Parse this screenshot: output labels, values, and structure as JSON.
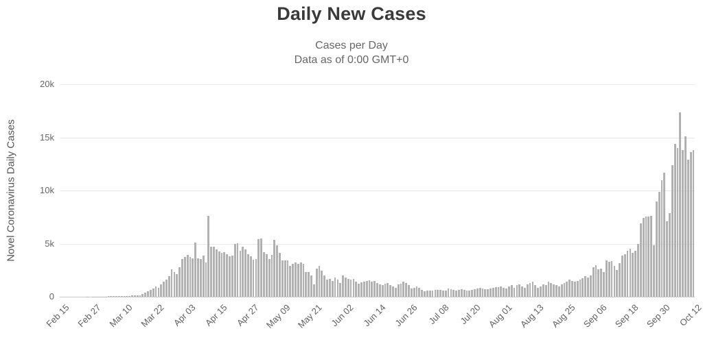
{
  "header": {
    "title": "Daily New Cases",
    "subtitle_line1": "Cases per Day",
    "subtitle_line2": "Data as of 0:00 GMT+0"
  },
  "chart_data": {
    "type": "bar",
    "title": "Daily New Cases",
    "subtitle": [
      "Cases per Day",
      "Data as of 0:00 GMT+0"
    ],
    "xlabel": "",
    "ylabel": "Novel Coronavirus Daily Cases",
    "ylim": [
      0,
      20000
    ],
    "ytick_values": [
      0,
      5000,
      10000,
      15000,
      20000
    ],
    "ytick_labels": [
      "0",
      "5k",
      "10k",
      "15k",
      "20k"
    ],
    "grid": true,
    "legend": false,
    "x_start_label": "Feb 15",
    "x_end_label": "Oct 12",
    "xtick_interval_days": 12,
    "xtick_labels": [
      "Feb 15",
      "Feb 27",
      "Mar 10",
      "Mar 22",
      "Apr 03",
      "Apr 15",
      "Apr 27",
      "May 09",
      "May 21",
      "Jun 02",
      "Jun 14",
      "Jun 26",
      "Jul 08",
      "Jul 20",
      "Aug 01",
      "Aug 13",
      "Aug 25",
      "Sep 06",
      "Sep 18",
      "Sep 30",
      "Oct 12"
    ],
    "series": [
      {
        "name": "Daily Cases",
        "values": [
          0,
          0,
          0,
          1,
          2,
          0,
          1,
          0,
          2,
          4,
          5,
          3,
          6,
          9,
          13,
          20,
          25,
          30,
          35,
          42,
          48,
          45,
          52,
          55,
          60,
          70,
          80,
          100,
          130,
          160,
          150,
          260,
          380,
          530,
          640,
          750,
          960,
          850,
          1170,
          1390,
          1600,
          1920,
          2560,
          2350,
          2140,
          2770,
          3520,
          3740,
          3950,
          3740,
          3630,
          5120,
          3630,
          3520,
          3840,
          3250,
          7600,
          4680,
          4740,
          4420,
          4250,
          4100,
          4210,
          3990,
          3780,
          3890,
          4950,
          5060,
          4310,
          4740,
          4420,
          3990,
          3780,
          3460,
          3570,
          5420,
          5500,
          4210,
          3990,
          3530,
          3950,
          5340,
          4810,
          4100,
          3420,
          3420,
          3420,
          2880,
          3100,
          3210,
          3100,
          3210,
          3100,
          2350,
          2350,
          2030,
          1180,
          2670,
          2880,
          2460,
          2030,
          1600,
          1710,
          1500,
          1820,
          1600,
          1280,
          2030,
          1820,
          1710,
          1600,
          1650,
          1390,
          1220,
          1350,
          1450,
          1500,
          1560,
          1440,
          1510,
          1280,
          1160,
          1110,
          1240,
          1280,
          1110,
          960,
          850,
          1180,
          1220,
          1390,
          1280,
          1070,
          750,
          850,
          960,
          850,
          640,
          530,
          600,
          580,
          550,
          620,
          630,
          640,
          580,
          550,
          750,
          680,
          650,
          600,
          640,
          690,
          660,
          580,
          570,
          640,
          700,
          770,
          820,
          790,
          690,
          720,
          780,
          830,
          880,
          910,
          960,
          850,
          750,
          960,
          1070,
          850,
          1070,
          1180,
          960,
          850,
          1180,
          1280,
          1390,
          1070,
          850,
          960,
          1180,
          1070,
          1390,
          1280,
          1180,
          1070,
          960,
          1180,
          1280,
          1390,
          1600,
          1500,
          1390,
          1500,
          1600,
          1750,
          1920,
          1820,
          2030,
          2780,
          2990,
          2560,
          2670,
          2350,
          3420,
          3310,
          3350,
          2930,
          2500,
          3140,
          3890,
          3990,
          4310,
          4530,
          4100,
          4310,
          4960,
          6880,
          7410,
          7520,
          7520,
          7600,
          4850,
          9000,
          9900,
          11000,
          11700,
          7100,
          7840,
          12400,
          14400,
          14000,
          17350,
          13800,
          15100,
          12900,
          13600,
          13800
        ]
      }
    ],
    "colors": {
      "bar": "#b1b1b1",
      "gridline": "#e7e7e7",
      "axis_line": "#c9c9c9",
      "title": "#3a3a3a",
      "subtitle": "#666666",
      "tick_label": "#606060"
    }
  }
}
